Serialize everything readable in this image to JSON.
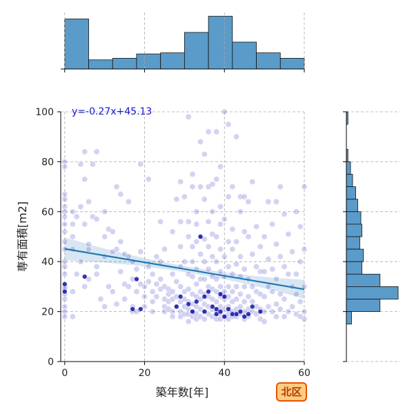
{
  "chart_data": {
    "type": "scatter",
    "title": "",
    "xlabel": "築年数[年]",
    "ylabel": "専有面積[m2]",
    "xlim": [
      -1,
      60
    ],
    "ylim": [
      0,
      100
    ],
    "x_ticks": [
      0,
      20,
      40,
      60
    ],
    "y_ticks": [
      0,
      20,
      40,
      60,
      80,
      100
    ],
    "grid": true,
    "regression": {
      "slope": -0.27,
      "intercept": 45.13,
      "label": "y=-0.27x+45.13"
    },
    "region_badge": "北区",
    "points": [
      [
        0,
        80
      ],
      [
        0,
        78
      ],
      [
        0,
        67
      ],
      [
        0,
        65
      ],
      [
        0,
        62
      ],
      [
        0,
        60
      ],
      [
        0,
        58
      ],
      [
        0,
        55
      ],
      [
        0,
        52
      ],
      [
        0,
        48
      ],
      [
        0,
        45
      ],
      [
        0,
        40
      ],
      [
        0,
        38
      ],
      [
        0,
        35
      ],
      [
        0,
        30
      ],
      [
        0,
        29
      ],
      [
        0,
        27
      ],
      [
        0,
        25
      ],
      [
        0,
        22
      ],
      [
        0,
        20
      ],
      [
        0,
        18
      ],
      [
        2,
        60
      ],
      [
        2,
        55
      ],
      [
        2,
        50
      ],
      [
        2,
        45
      ],
      [
        2,
        28
      ],
      [
        2,
        18
      ],
      [
        3,
        58
      ],
      [
        3,
        35
      ],
      [
        4,
        79
      ],
      [
        4,
        62
      ],
      [
        4,
        40
      ],
      [
        5,
        84
      ],
      [
        5,
        73
      ],
      [
        5,
        55
      ],
      [
        5,
        30
      ],
      [
        6,
        64
      ],
      [
        6,
        47
      ],
      [
        6,
        45
      ],
      [
        6,
        33
      ],
      [
        7,
        79
      ],
      [
        7,
        58
      ],
      [
        8,
        84
      ],
      [
        8,
        57
      ],
      [
        8,
        38
      ],
      [
        8,
        35
      ],
      [
        9,
        25
      ],
      [
        10,
        60
      ],
      [
        10,
        50
      ],
      [
        10,
        42
      ],
      [
        10,
        22
      ],
      [
        11,
        53
      ],
      [
        11,
        30
      ],
      [
        12,
        52
      ],
      [
        12,
        44
      ],
      [
        12,
        28
      ],
      [
        13,
        70
      ],
      [
        13,
        45
      ],
      [
        13,
        23
      ],
      [
        14,
        67
      ],
      [
        14,
        48
      ],
      [
        14,
        36
      ],
      [
        15,
        43
      ],
      [
        15,
        31
      ],
      [
        15,
        25
      ],
      [
        16,
        64
      ],
      [
        16,
        42
      ],
      [
        16,
        30
      ],
      [
        17,
        40
      ],
      [
        17,
        33
      ],
      [
        17,
        22
      ],
      [
        17,
        20
      ],
      [
        18,
        37
      ],
      [
        18,
        28
      ],
      [
        18,
        20
      ],
      [
        19,
        79
      ],
      [
        19,
        44
      ],
      [
        19,
        31
      ],
      [
        20,
        30
      ],
      [
        20,
        26
      ],
      [
        20,
        22
      ],
      [
        21,
        73
      ],
      [
        21,
        38
      ],
      [
        21,
        32
      ],
      [
        22,
        35
      ],
      [
        22,
        28
      ],
      [
        22,
        24
      ],
      [
        22,
        20
      ],
      [
        23,
        42
      ],
      [
        23,
        31
      ],
      [
        23,
        26
      ],
      [
        24,
        56
      ],
      [
        24,
        40
      ],
      [
        24,
        33
      ],
      [
        24,
        29
      ],
      [
        25,
        45
      ],
      [
        25,
        30
      ],
      [
        25,
        25
      ],
      [
        25,
        22
      ],
      [
        25,
        20
      ],
      [
        26,
        29
      ],
      [
        26,
        27
      ],
      [
        26,
        24
      ],
      [
        26,
        21
      ],
      [
        27,
        52
      ],
      [
        27,
        35
      ],
      [
        27,
        28
      ],
      [
        27,
        25
      ],
      [
        27,
        20
      ],
      [
        27,
        18
      ],
      [
        28,
        65
      ],
      [
        28,
        32
      ],
      [
        28,
        26
      ],
      [
        28,
        22
      ],
      [
        29,
        72
      ],
      [
        29,
        56
      ],
      [
        29,
        46
      ],
      [
        29,
        38
      ],
      [
        29,
        30
      ],
      [
        29,
        24
      ],
      [
        29,
        20
      ],
      [
        29,
        18
      ],
      [
        30,
        66
      ],
      [
        30,
        40
      ],
      [
        30,
        28
      ],
      [
        30,
        25
      ],
      [
        30,
        22
      ],
      [
        30,
        19
      ],
      [
        31,
        98
      ],
      [
        31,
        56
      ],
      [
        31,
        50
      ],
      [
        31,
        35
      ],
      [
        31,
        29
      ],
      [
        31,
        24
      ],
      [
        31,
        21
      ],
      [
        31,
        19
      ],
      [
        31,
        16
      ],
      [
        32,
        75
      ],
      [
        32,
        70
      ],
      [
        32,
        46
      ],
      [
        32,
        40
      ],
      [
        32,
        34
      ],
      [
        32,
        27
      ],
      [
        32,
        23
      ],
      [
        32,
        20
      ],
      [
        32,
        18
      ],
      [
        33,
        60
      ],
      [
        33,
        55
      ],
      [
        33,
        48
      ],
      [
        33,
        37
      ],
      [
        33,
        31
      ],
      [
        33,
        26
      ],
      [
        33,
        22
      ],
      [
        33,
        19
      ],
      [
        33,
        17
      ],
      [
        34,
        88
      ],
      [
        34,
        70
      ],
      [
        34,
        50
      ],
      [
        34,
        43
      ],
      [
        34,
        33
      ],
      [
        34,
        28
      ],
      [
        34,
        25
      ],
      [
        34,
        21
      ],
      [
        34,
        18
      ],
      [
        35,
        83
      ],
      [
        35,
        65
      ],
      [
        35,
        49
      ],
      [
        35,
        40
      ],
      [
        35,
        33
      ],
      [
        35,
        27
      ],
      [
        35,
        23
      ],
      [
        35,
        20
      ],
      [
        35,
        17
      ],
      [
        36,
        92
      ],
      [
        36,
        70
      ],
      [
        36,
        56
      ],
      [
        36,
        46
      ],
      [
        36,
        37
      ],
      [
        36,
        30
      ],
      [
        36,
        26
      ],
      [
        36,
        22
      ],
      [
        36,
        19
      ],
      [
        37,
        71
      ],
      [
        37,
        60
      ],
      [
        37,
        51
      ],
      [
        37,
        42
      ],
      [
        37,
        34
      ],
      [
        37,
        29
      ],
      [
        37,
        25
      ],
      [
        37,
        21
      ],
      [
        37,
        18
      ],
      [
        38,
        92
      ],
      [
        38,
        73
      ],
      [
        38,
        50
      ],
      [
        38,
        40
      ],
      [
        38,
        33
      ],
      [
        38,
        28
      ],
      [
        38,
        24
      ],
      [
        38,
        20
      ],
      [
        38,
        17
      ],
      [
        39,
        78
      ],
      [
        39,
        62
      ],
      [
        39,
        55
      ],
      [
        39,
        45
      ],
      [
        39,
        36
      ],
      [
        39,
        30
      ],
      [
        39,
        26
      ],
      [
        39,
        22
      ],
      [
        39,
        19
      ],
      [
        39,
        17
      ],
      [
        40,
        100
      ],
      [
        40,
        57
      ],
      [
        40,
        42
      ],
      [
        40,
        34
      ],
      [
        40,
        28
      ],
      [
        40,
        25
      ],
      [
        40,
        21
      ],
      [
        40,
        18
      ],
      [
        41,
        95
      ],
      [
        41,
        66
      ],
      [
        41,
        48
      ],
      [
        41,
        38
      ],
      [
        41,
        30
      ],
      [
        41,
        26
      ],
      [
        41,
        22
      ],
      [
        41,
        19
      ],
      [
        41,
        17
      ],
      [
        42,
        70
      ],
      [
        42,
        53
      ],
      [
        42,
        45
      ],
      [
        42,
        35
      ],
      [
        42,
        28
      ],
      [
        42,
        24
      ],
      [
        42,
        20
      ],
      [
        42,
        18
      ],
      [
        43,
        90
      ],
      [
        43,
        48
      ],
      [
        43,
        39
      ],
      [
        43,
        30
      ],
      [
        43,
        25
      ],
      [
        43,
        21
      ],
      [
        43,
        18
      ],
      [
        44,
        66
      ],
      [
        44,
        60
      ],
      [
        44,
        42
      ],
      [
        44,
        34
      ],
      [
        44,
        27
      ],
      [
        44,
        22
      ],
      [
        44,
        19
      ],
      [
        45,
        66
      ],
      [
        45,
        52
      ],
      [
        45,
        37
      ],
      [
        45,
        30
      ],
      [
        45,
        24
      ],
      [
        45,
        20
      ],
      [
        45,
        17
      ],
      [
        46,
        64
      ],
      [
        46,
        50
      ],
      [
        46,
        33
      ],
      [
        46,
        26
      ],
      [
        46,
        21
      ],
      [
        46,
        18
      ],
      [
        47,
        72
      ],
      [
        47,
        43
      ],
      [
        47,
        30
      ],
      [
        47,
        24
      ],
      [
        47,
        20
      ],
      [
        48,
        54
      ],
      [
        48,
        38
      ],
      [
        48,
        28
      ],
      [
        48,
        22
      ],
      [
        48,
        19
      ],
      [
        49,
        46
      ],
      [
        49,
        36
      ],
      [
        49,
        27
      ],
      [
        49,
        21
      ],
      [
        49,
        17
      ],
      [
        50,
        50
      ],
      [
        50,
        36
      ],
      [
        50,
        26
      ],
      [
        50,
        20
      ],
      [
        50,
        16
      ],
      [
        51,
        64
      ],
      [
        51,
        41
      ],
      [
        51,
        30
      ],
      [
        51,
        22
      ],
      [
        52,
        55
      ],
      [
        52,
        37
      ],
      [
        52,
        28
      ],
      [
        52,
        20
      ],
      [
        53,
        64
      ],
      [
        53,
        47
      ],
      [
        53,
        33
      ],
      [
        53,
        23
      ],
      [
        53,
        18
      ],
      [
        54,
        70
      ],
      [
        54,
        42
      ],
      [
        54,
        27
      ],
      [
        54,
        21
      ],
      [
        55,
        59
      ],
      [
        55,
        38
      ],
      [
        55,
        25
      ],
      [
        55,
        18
      ],
      [
        56,
        51
      ],
      [
        56,
        35
      ],
      [
        56,
        20
      ],
      [
        57,
        44
      ],
      [
        57,
        30
      ],
      [
        57,
        22
      ],
      [
        58,
        60
      ],
      [
        58,
        35
      ],
      [
        58,
        27
      ],
      [
        58,
        19
      ],
      [
        59,
        54
      ],
      [
        59,
        40
      ],
      [
        59,
        24
      ],
      [
        59,
        18
      ],
      [
        60,
        70
      ],
      [
        60,
        45
      ],
      [
        60,
        30
      ],
      [
        60,
        20
      ],
      [
        60,
        17
      ]
    ],
    "highlight_points": [
      [
        0,
        31
      ],
      [
        0,
        28
      ],
      [
        5,
        34
      ],
      [
        17,
        21
      ],
      [
        18,
        33
      ],
      [
        19,
        21
      ],
      [
        28,
        22
      ],
      [
        29,
        26
      ],
      [
        31,
        23
      ],
      [
        32,
        20
      ],
      [
        33,
        24
      ],
      [
        34,
        50
      ],
      [
        35,
        26
      ],
      [
        35,
        20
      ],
      [
        36,
        28
      ],
      [
        37,
        22
      ],
      [
        38,
        21
      ],
      [
        38,
        19
      ],
      [
        39,
        27
      ],
      [
        39,
        20
      ],
      [
        40,
        18
      ],
      [
        40,
        26
      ],
      [
        41,
        21
      ],
      [
        42,
        19
      ],
      [
        43,
        19
      ],
      [
        44,
        20
      ],
      [
        45,
        18
      ],
      [
        46,
        19
      ],
      [
        47,
        22
      ],
      [
        49,
        20
      ]
    ],
    "x_marginal": {
      "type": "histogram",
      "bins": [
        [
          0,
          6,
          0.93
        ],
        [
          6,
          12,
          0.17
        ],
        [
          12,
          18,
          0.2
        ],
        [
          18,
          24,
          0.28
        ],
        [
          24,
          30,
          0.3
        ],
        [
          30,
          36,
          0.68
        ],
        [
          36,
          42,
          0.98
        ],
        [
          42,
          48,
          0.5
        ],
        [
          48,
          54,
          0.3
        ],
        [
          54,
          60,
          0.2
        ]
      ]
    },
    "y_marginal": {
      "type": "histogram",
      "bins": [
        [
          95,
          100,
          0.03
        ],
        [
          80,
          85,
          0.03
        ],
        [
          75,
          80,
          0.08
        ],
        [
          70,
          75,
          0.12
        ],
        [
          65,
          70,
          0.18
        ],
        [
          60,
          65,
          0.22
        ],
        [
          55,
          60,
          0.28
        ],
        [
          50,
          55,
          0.3
        ],
        [
          45,
          50,
          0.26
        ],
        [
          40,
          45,
          0.33
        ],
        [
          35,
          40,
          0.3
        ],
        [
          30,
          35,
          0.65
        ],
        [
          25,
          30,
          1.0
        ],
        [
          20,
          25,
          0.65
        ],
        [
          15,
          20,
          0.1
        ]
      ]
    }
  }
}
